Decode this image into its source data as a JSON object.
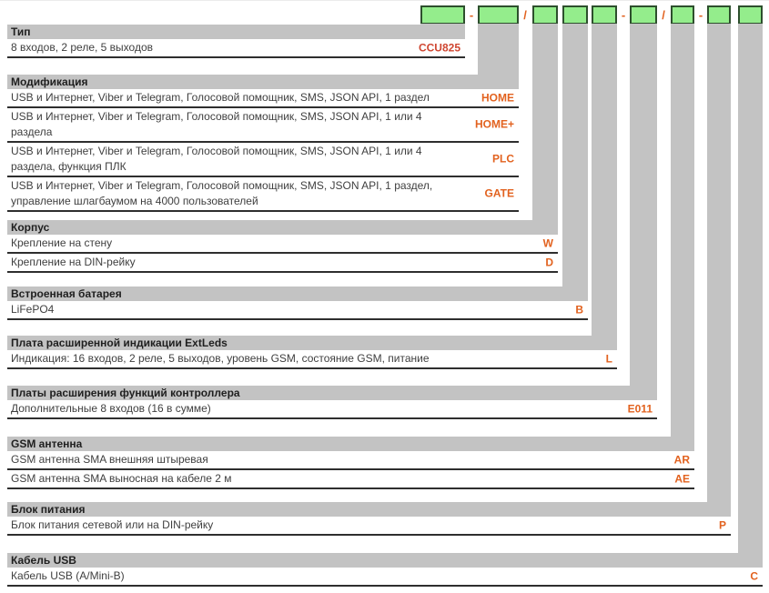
{
  "colors": {
    "slot_fill": "#94ed8c",
    "slot_border": "#2d4f2d",
    "connector_gray": "#c3c3c3",
    "code_orange": "#e2621f",
    "type_code_red": "#cf4631",
    "underline": "#2e2e2e",
    "row_text": "#3f3f3f",
    "header_text": "#1f1f1f"
  },
  "top_row": {
    "slot_count": 9,
    "separators": [
      {
        "label": "-"
      },
      {
        "label": "/"
      },
      {
        "label": "-"
      },
      {
        "label": "/"
      },
      {
        "label": "-"
      }
    ]
  },
  "sections": [
    {
      "title": "Тип",
      "rows": [
        {
          "text": "8 входов, 2 реле, 5 выходов",
          "code": "CCU825"
        }
      ]
    },
    {
      "title": "Модификация",
      "rows": [
        {
          "text": "USB и Интернет, Viber и Telegram, Голосовой помощник, SMS, JSON API, 1 раздел",
          "code": "HOME"
        },
        {
          "text": "USB и Интернет, Viber и Telegram, Голосовой помощник, SMS, JSON API, 1 или 4 раздела",
          "code": "HOME+"
        },
        {
          "text": "USB и Интернет, Viber и Telegram, Голосовой помощник, SMS, JSON API, 1 или 4 раздела, функция ПЛК",
          "code": "PLC"
        },
        {
          "text": "USB и Интернет, Viber и Telegram, Голосовой помощник, SMS, JSON API, 1 раздел, управление шлагбаумом на 4000 пользователей",
          "code": "GATE"
        }
      ]
    },
    {
      "title": "Корпус",
      "rows": [
        {
          "text": "Крепление на стену",
          "code": "W"
        },
        {
          "text": "Крепление на DIN-рейку",
          "code": "D"
        }
      ]
    },
    {
      "title": "Встроенная батарея",
      "rows": [
        {
          "text": "LiFePO4",
          "code": "B"
        }
      ]
    },
    {
      "title": "Плата расширенной индикации ExtLeds",
      "rows": [
        {
          "text": "Индикация: 16 входов, 2 реле, 5 выходов, уровень GSM, состояние GSM, питание",
          "code": "L"
        }
      ]
    },
    {
      "title": "Платы расширения функций контроллера",
      "rows": [
        {
          "text": "Дополнительные 8 входов (16 в сумме)",
          "code": "E011"
        }
      ]
    },
    {
      "title": "GSM антенна",
      "rows": [
        {
          "text": "GSM антенна SMA внешняя штыревая",
          "code": "AR"
        },
        {
          "text": "GSM антенна SMA выносная на кабеле 2 м",
          "code": "AE"
        }
      ]
    },
    {
      "title": "Блок питания",
      "rows": [
        {
          "text": "Блок питания сетевой или на DIN-рейку",
          "code": "P"
        }
      ]
    },
    {
      "title": "Кабель USB",
      "rows": [
        {
          "text": "Кабель USB (A/Mini-B)",
          "code": "C"
        }
      ]
    }
  ]
}
